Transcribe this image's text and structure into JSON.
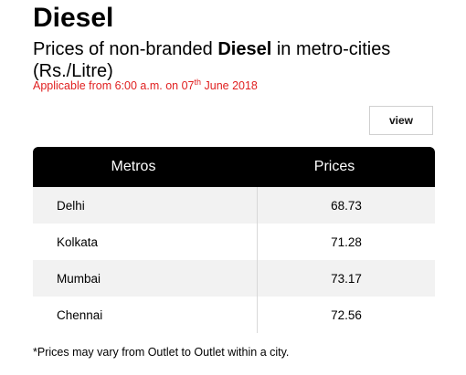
{
  "header": {
    "title": "Diesel",
    "subtitle_prefix": "Prices of non-branded ",
    "subtitle_bold": "Diesel",
    "subtitle_suffix": " in metro-cities (Rs./Litre)",
    "applicable_prefix": "Applicable from 6:00 a.m. on 07",
    "applicable_sup": "th",
    "applicable_suffix": " June 2018"
  },
  "view_button": {
    "label": "view"
  },
  "table": {
    "columns": [
      "Metros",
      "Prices"
    ],
    "rows": [
      {
        "metro": "Delhi",
        "price": "68.73"
      },
      {
        "metro": "Kolkata",
        "price": "71.28"
      },
      {
        "metro": "Mumbai",
        "price": "73.17"
      },
      {
        "metro": "Chennai",
        "price": "72.56"
      }
    ]
  },
  "footnote": "*Prices may vary from Outlet to Outlet within a city.",
  "colors": {
    "accent_red": "#e02020",
    "header_bg": "#000000",
    "row_alt_bg": "#f2f2f2"
  }
}
